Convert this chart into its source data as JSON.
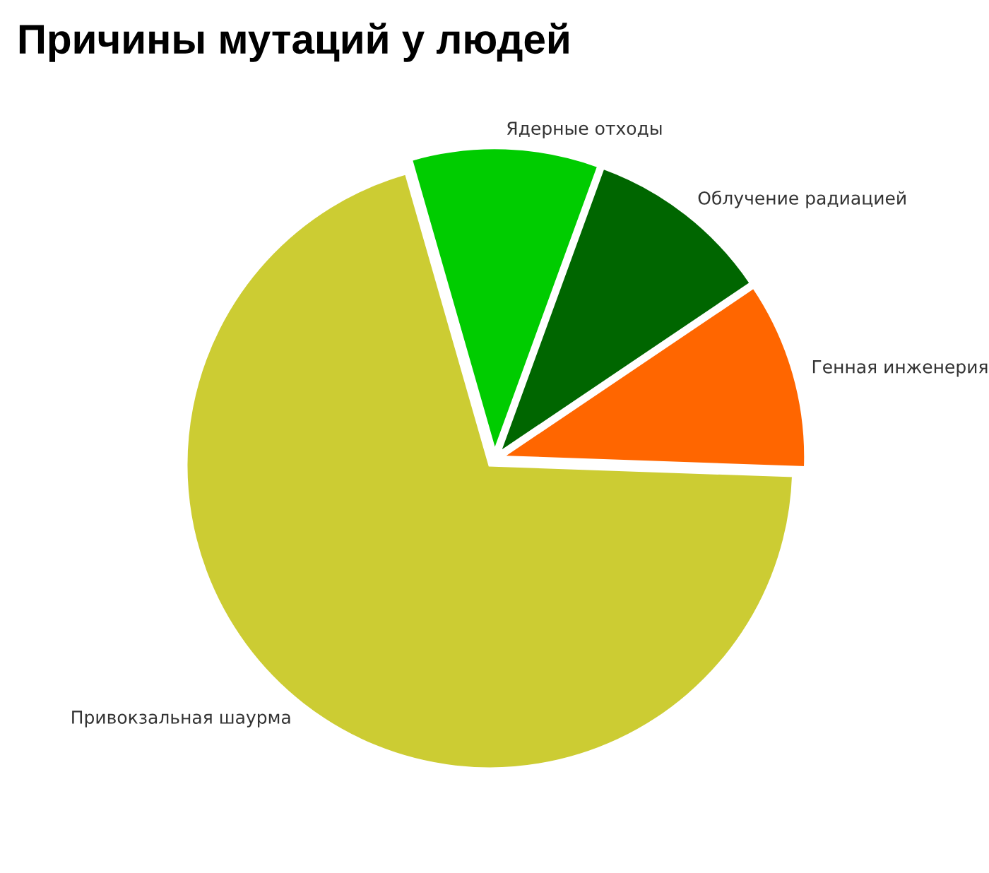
{
  "chart_data": {
    "type": "pie",
    "title": "Причины мутаций у людей",
    "categories": [
      "Генная инженерия",
      "Облучение радиацией",
      "Ядерные отходы",
      "Привокзальная шаурма"
    ],
    "values": [
      10,
      10,
      10,
      70
    ],
    "colors": [
      "#ff6600",
      "#006600",
      "#00cc00",
      "#cccc33"
    ]
  }
}
